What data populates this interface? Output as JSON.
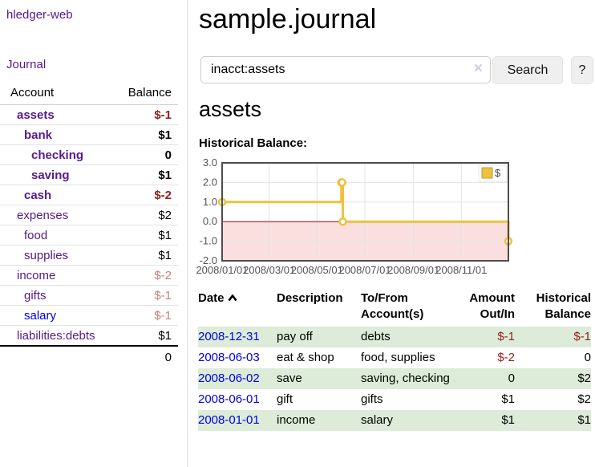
{
  "brand": "hledger-web",
  "nav": {
    "journal": "Journal"
  },
  "sidebar": {
    "header": {
      "account": "Account",
      "balance": "Balance"
    },
    "accounts": [
      {
        "name": "assets",
        "balance": "$-1",
        "level": 1,
        "bold": true,
        "link": "purple",
        "balance_class": "neg-strong"
      },
      {
        "name": "bank",
        "balance": "$1",
        "level": 2,
        "bold": true,
        "link": "purple",
        "balance_class": ""
      },
      {
        "name": "checking",
        "balance": "0",
        "level": 3,
        "bold": true,
        "link": "purple",
        "balance_class": ""
      },
      {
        "name": "saving",
        "balance": "$1",
        "level": 3,
        "bold": true,
        "link": "purple",
        "balance_class": ""
      },
      {
        "name": "cash",
        "balance": "$-2",
        "level": 2,
        "bold": true,
        "link": "purple",
        "balance_class": "neg-strong"
      },
      {
        "name": "expenses",
        "balance": "$2",
        "level": 1,
        "bold": false,
        "link": "purple",
        "balance_class": ""
      },
      {
        "name": "food",
        "balance": "$1",
        "level": 2,
        "bold": false,
        "link": "purple",
        "balance_class": ""
      },
      {
        "name": "supplies",
        "balance": "$1",
        "level": 2,
        "bold": false,
        "link": "purple",
        "balance_class": ""
      },
      {
        "name": "income",
        "balance": "$-2",
        "level": 1,
        "bold": false,
        "link": "purple",
        "balance_class": "neg-dim"
      },
      {
        "name": "gifts",
        "balance": "$-1",
        "level": 2,
        "bold": false,
        "link": "purple",
        "balance_class": "neg-dim"
      },
      {
        "name": "salary",
        "balance": "$-1",
        "level": 2,
        "bold": false,
        "link": "blue",
        "balance_class": "neg-dim"
      },
      {
        "name": "liabilities:debts",
        "balance": "$1",
        "level": 1,
        "bold": false,
        "link": "purple",
        "balance_class": ""
      }
    ],
    "total": "0"
  },
  "main": {
    "title": "sample.journal",
    "search": {
      "value": "inacct:assets",
      "clear": "×",
      "button_label": "Search",
      "help_label": "?"
    },
    "section_heading": "assets",
    "chart_heading": "Historical Balance:"
  },
  "chart_data": {
    "type": "line",
    "step": true,
    "title": "Historical Balance",
    "series": [
      {
        "name": "$",
        "color": "#edc240",
        "points": [
          [
            "2008-01-01",
            1
          ],
          [
            "2008-06-01",
            2
          ],
          [
            "2008-06-02",
            2
          ],
          [
            "2008-06-03",
            0
          ],
          [
            "2008-12-31",
            -1
          ]
        ]
      }
    ],
    "x_range": [
      "2008-01-01",
      "2008-12-31"
    ],
    "x_ticks": [
      {
        "date": "2008-01-01",
        "label": "2008/01/01"
      },
      {
        "date": "2008-03-01",
        "label": "2008/03/01"
      },
      {
        "date": "2008-05-01",
        "label": "2008/05/01"
      },
      {
        "date": "2008-07-01",
        "label": "2008/07/01"
      },
      {
        "date": "2008-09-01",
        "label": "2008/09/01"
      },
      {
        "date": "2008-11-01",
        "label": "2008/11/01"
      }
    ],
    "y_ticks": [
      {
        "v": 3,
        "label": "3.0"
      },
      {
        "v": 2,
        "label": "2.0"
      },
      {
        "v": 1,
        "label": "1.0"
      },
      {
        "v": 0,
        "label": "0.0"
      },
      {
        "v": -1,
        "label": "-1.0"
      },
      {
        "v": -2,
        "label": "-2.0"
      }
    ],
    "ylim": [
      -2,
      3
    ],
    "grid": true,
    "legend": {
      "label": "$",
      "position": "top-right"
    },
    "colors": {
      "negative_fill": "#fbdfdf",
      "zero_line": "#a40000",
      "grid": "#e3e3e3",
      "border": "#4d4d4d",
      "tick_text": "#545454",
      "legend_square_border": "#c3992b"
    }
  },
  "register": {
    "headers": [
      {
        "label": "Date",
        "sort": "asc"
      },
      {
        "label": "Description"
      },
      {
        "label": "To/From Account(s)"
      },
      {
        "label": "Amount Out/In"
      },
      {
        "label": "Historical Balance"
      }
    ],
    "rows": [
      {
        "date": "2008-12-31",
        "description": "pay off",
        "accounts": "debts",
        "amount": "$-1",
        "amount_class": "neg-strong",
        "balance": "$-1",
        "balance_class": "neg-strong",
        "shade": true
      },
      {
        "date": "2008-06-03",
        "description": "eat & shop",
        "accounts": "food, supplies",
        "amount": "$-2",
        "amount_class": "neg-strong",
        "balance": "0",
        "balance_class": "",
        "shade": false
      },
      {
        "date": "2008-06-02",
        "description": "save",
        "accounts": "saving, checking",
        "amount": "0",
        "amount_class": "",
        "balance": "$2",
        "balance_class": "",
        "shade": true
      },
      {
        "date": "2008-06-01",
        "description": "gift",
        "accounts": "gifts",
        "amount": "$1",
        "amount_class": "",
        "balance": "$2",
        "balance_class": "",
        "shade": false
      },
      {
        "date": "2008-01-01",
        "description": "income",
        "accounts": "salary",
        "amount": "$1",
        "amount_class": "",
        "balance": "$1",
        "balance_class": "",
        "shade": true
      }
    ]
  }
}
